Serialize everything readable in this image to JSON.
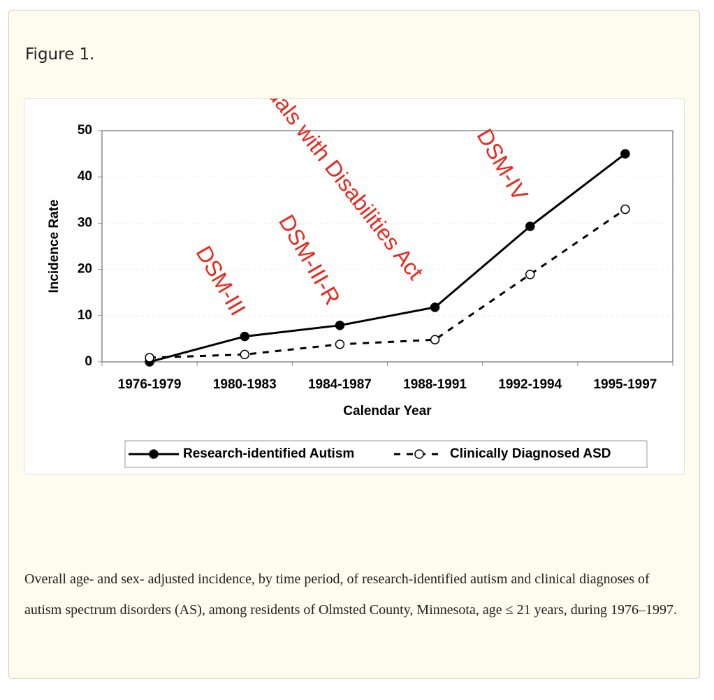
{
  "figure_label": "Figure 1.",
  "chart_data": {
    "type": "line",
    "x_label": "Calendar Year",
    "y_label": "Incidence Rate",
    "categories": [
      "1976-1979",
      "1980-1983",
      "1984-1987",
      "1988-1991",
      "1992-1994",
      "1995-1997"
    ],
    "series": [
      {
        "name": "Research-identified Autism",
        "color": "#000000",
        "values": [
          0,
          5.5,
          7.9,
          11.8,
          29.3,
          45
        ]
      },
      {
        "name": "Clinically Diagnosed ASD",
        "color": "#000000",
        "values": [
          0.9,
          1.6,
          3.8,
          4.8,
          18.9,
          33
        ]
      }
    ],
    "ylim": [
      0,
      50
    ],
    "yticks": [
      0,
      10,
      20,
      30,
      40,
      50
    ],
    "grid": true,
    "annotations": [
      "DSM-III",
      "DSM-III-R",
      "Individuals with Disabilities Act",
      "DSM-IV"
    ]
  },
  "caption": "Overall age- and sex- adjusted incidence, by time period, of research-identified autism and clinical diagnoses of autism spectrum disorders (AS), among residents of Olmsted County, Minnesota, age ≤ 21 years, during 1976–1997."
}
